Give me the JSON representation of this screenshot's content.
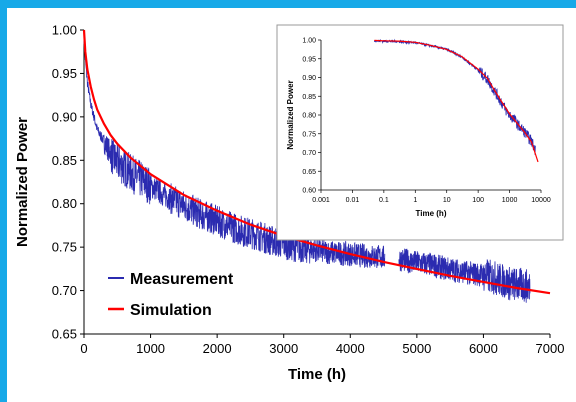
{
  "chart_data": [
    {
      "type": "line",
      "xlabel": "Time (h)",
      "ylabel": "Normalized Power",
      "xlim": [
        0,
        7000
      ],
      "ylim": [
        0.65,
        1.0
      ],
      "x_ticks": [
        "0",
        "1000",
        "2000",
        "3000",
        "4000",
        "5000",
        "6000",
        "7000"
      ],
      "y_ticks": [
        "0.65",
        "0.70",
        "0.75",
        "0.80",
        "0.85",
        "0.90",
        "0.95",
        "1.00"
      ],
      "grid": false,
      "legend": "bottom-left",
      "series": [
        {
          "name": "Measurement",
          "color": "#2b2bb0",
          "x": [
            0,
            20,
            50,
            100,
            150,
            200,
            250,
            300,
            350,
            400,
            450,
            500,
            600,
            700,
            800,
            900,
            1000,
            1100,
            1200,
            1300,
            1400,
            1500,
            1600,
            1700,
            1800,
            1900,
            2000,
            2200,
            2400,
            2600,
            2800,
            3000,
            3200,
            3400,
            3600,
            3800,
            4000,
            4200,
            4400,
            4500,
            4750,
            5000,
            5200,
            5400,
            5600,
            5800,
            6000,
            6200,
            6400,
            6600,
            6700
          ],
          "y": [
            0.99,
            0.965,
            0.94,
            0.915,
            0.9,
            0.885,
            0.878,
            0.872,
            0.865,
            0.858,
            0.852,
            0.848,
            0.842,
            0.836,
            0.83,
            0.826,
            0.82,
            0.816,
            0.81,
            0.806,
            0.802,
            0.798,
            0.794,
            0.79,
            0.786,
            0.784,
            0.78,
            0.774,
            0.768,
            0.764,
            0.758,
            0.754,
            0.75,
            0.748,
            0.745,
            0.743,
            0.742,
            0.74,
            0.739,
            0.738,
            0.736,
            0.732,
            0.73,
            0.726,
            0.723,
            0.72,
            0.718,
            0.714,
            0.708,
            0.706,
            0.704
          ]
        },
        {
          "name": "Simulation",
          "color": "#ff0000",
          "x": [
            0,
            20,
            50,
            100,
            150,
            200,
            300,
            400,
            500,
            700,
            1000,
            1500,
            2000,
            2500,
            3000,
            3500,
            4000,
            4500,
            5000,
            5500,
            6000,
            6500,
            7000
          ],
          "y": [
            1.0,
            0.975,
            0.955,
            0.935,
            0.92,
            0.908,
            0.892,
            0.879,
            0.869,
            0.853,
            0.834,
            0.81,
            0.792,
            0.776,
            0.763,
            0.752,
            0.742,
            0.733,
            0.725,
            0.717,
            0.71,
            0.703,
            0.697
          ]
        }
      ]
    },
    {
      "type": "line",
      "xlabel": "Time (h)",
      "ylabel": "Normalized Power",
      "x_scale": "log",
      "xlim": [
        0.001,
        10000
      ],
      "ylim": [
        0.6,
        1.0
      ],
      "x_ticks": [
        "0.001",
        "0.01",
        "0.1",
        "1",
        "10",
        "100",
        "1000",
        "10000"
      ],
      "y_ticks": [
        "0.60",
        "0.65",
        "0.70",
        "0.75",
        "0.80",
        "0.85",
        "0.90",
        "0.95",
        "1.00"
      ],
      "grid": false,
      "series": [
        {
          "color": "#2b2bb0",
          "x": [
            0.05,
            0.1,
            0.3,
            1,
            3,
            10,
            30,
            100,
            200,
            300,
            500,
            800,
            1000,
            1500,
            2000,
            3000,
            4000,
            5000,
            6700
          ],
          "y": [
            0.998,
            0.997,
            0.996,
            0.993,
            0.985,
            0.975,
            0.955,
            0.92,
            0.895,
            0.87,
            0.84,
            0.81,
            0.8,
            0.785,
            0.77,
            0.755,
            0.74,
            0.73,
            0.705
          ]
        },
        {
          "color": "#ff0000",
          "x": [
            0.05,
            0.1,
            0.3,
            1,
            3,
            10,
            30,
            100,
            200,
            300,
            500,
            1000,
            2000,
            3000,
            5000,
            8000
          ],
          "y": [
            0.999,
            0.998,
            0.997,
            0.994,
            0.986,
            0.975,
            0.956,
            0.922,
            0.897,
            0.872,
            0.842,
            0.803,
            0.772,
            0.754,
            0.728,
            0.675
          ]
        }
      ]
    }
  ]
}
